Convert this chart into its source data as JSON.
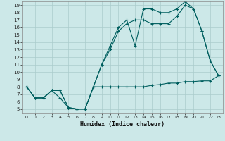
{
  "xlabel": "Humidex (Indice chaleur)",
  "bg_color": "#cce8e8",
  "grid_color": "#aacccc",
  "line_color": "#005f5f",
  "xlim": [
    -0.5,
    23.5
  ],
  "ylim": [
    4.5,
    19.5
  ],
  "xticks": [
    0,
    1,
    2,
    3,
    4,
    5,
    6,
    7,
    8,
    9,
    10,
    11,
    12,
    13,
    14,
    15,
    16,
    17,
    18,
    19,
    20,
    21,
    22,
    23
  ],
  "yticks": [
    5,
    6,
    7,
    8,
    9,
    10,
    11,
    12,
    13,
    14,
    15,
    16,
    17,
    18,
    19
  ],
  "line1_x": [
    0,
    1,
    2,
    3,
    4,
    5,
    6,
    7,
    8,
    9,
    10,
    11,
    12,
    13,
    14,
    15,
    16,
    17,
    18,
    19,
    20,
    21,
    22,
    23
  ],
  "line1_y": [
    8.0,
    6.5,
    6.5,
    7.5,
    7.5,
    5.2,
    5.0,
    5.0,
    8.0,
    8.0,
    8.0,
    8.0,
    8.0,
    8.0,
    8.0,
    8.2,
    8.3,
    8.5,
    8.5,
    8.7,
    8.7,
    8.8,
    8.8,
    9.5
  ],
  "line2_x": [
    0,
    1,
    2,
    3,
    4,
    5,
    6,
    7,
    8,
    9,
    10,
    11,
    12,
    13,
    14,
    15,
    16,
    17,
    18,
    19,
    20,
    21,
    22,
    23
  ],
  "line2_y": [
    8.0,
    6.5,
    6.5,
    7.5,
    7.5,
    5.2,
    5.0,
    5.0,
    8.0,
    11.0,
    13.0,
    15.5,
    16.5,
    17.0,
    17.0,
    16.5,
    16.5,
    16.5,
    17.5,
    19.0,
    18.5,
    15.5,
    11.5,
    9.5
  ],
  "line3_x": [
    0,
    1,
    2,
    3,
    4,
    5,
    6,
    7,
    8,
    9,
    10,
    11,
    12,
    13,
    14,
    15,
    16,
    17,
    18,
    19,
    20,
    21,
    22,
    23
  ],
  "line3_y": [
    8.0,
    6.5,
    6.5,
    7.5,
    6.5,
    5.2,
    5.0,
    5.0,
    8.0,
    11.0,
    13.5,
    16.0,
    17.0,
    13.5,
    18.5,
    18.5,
    18.0,
    18.0,
    18.5,
    19.5,
    18.5,
    15.5,
    11.5,
    9.5
  ]
}
